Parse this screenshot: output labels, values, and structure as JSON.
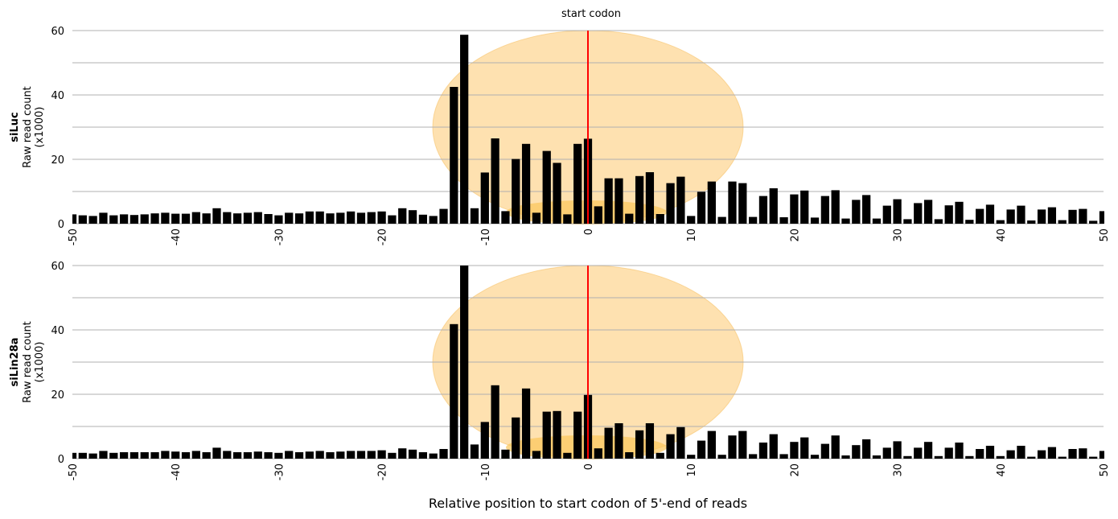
{
  "chart_data": [
    {
      "type": "bar",
      "ylabel_bold": "siLuc",
      "ylabel_lines": [
        "Raw read count",
        "(x1000)"
      ],
      "annotation": "start codon",
      "ylim": [
        0,
        60
      ],
      "yticks": [
        0,
        20,
        40,
        60
      ],
      "grid": true,
      "xlim": [
        -50,
        50
      ],
      "xticks": [
        -50,
        -40,
        -30,
        -20,
        -10,
        0,
        10,
        20,
        30,
        40,
        50
      ],
      "marker_line_x": 0,
      "marker_color": "#ff0000",
      "bar_color": "#000000",
      "x_start": -50,
      "values": [
        2.9,
        2.6,
        2.4,
        3.4,
        2.6,
        2.9,
        2.7,
        2.9,
        3.2,
        3.4,
        3.1,
        3.1,
        3.6,
        3.2,
        4.8,
        3.6,
        3.2,
        3.4,
        3.6,
        3.0,
        2.6,
        3.4,
        3.2,
        3.8,
        3.8,
        3.2,
        3.4,
        3.8,
        3.4,
        3.6,
        3.8,
        2.6,
        4.8,
        4.2,
        2.8,
        2.4,
        4.6,
        42.5,
        58.7,
        4.8,
        15.9,
        26.5,
        3.9,
        20.1,
        24.8,
        3.4,
        22.6,
        18.9,
        2.9,
        24.8,
        26.4,
        5.4,
        14.1,
        14.1,
        3.1,
        14.8,
        16.0,
        3.0,
        12.6,
        14.6,
        2.4,
        9.9,
        13.1,
        2.1,
        13.1,
        12.6,
        2.1,
        8.6,
        11.0,
        2.0,
        9.1,
        10.3,
        1.9,
        8.6,
        10.4,
        1.6,
        7.4,
        8.9,
        1.6,
        5.6,
        7.6,
        1.4,
        6.4,
        7.4,
        1.4,
        5.7,
        6.8,
        1.2,
        4.6,
        5.9,
        1.1,
        4.4,
        5.6,
        1.0,
        4.4,
        5.1,
        1.1,
        4.3,
        4.6,
        0.9,
        3.9
      ]
    },
    {
      "type": "bar",
      "ylabel_bold": "siLin28a",
      "ylabel_lines": [
        "Raw read count",
        "(x1000)"
      ],
      "ylim": [
        0,
        60
      ],
      "yticks": [
        0,
        20,
        40,
        60
      ],
      "grid": true,
      "xlim": [
        -50,
        50
      ],
      "xticks": [
        -50,
        -40,
        -30,
        -20,
        -10,
        0,
        10,
        20,
        30,
        40,
        50
      ],
      "xlabel": "Relative position to start codon of 5'-end of reads",
      "marker_line_x": 0,
      "marker_color": "#ff0000",
      "bar_color": "#000000",
      "x_start": -50,
      "values": [
        1.8,
        1.8,
        1.6,
        2.4,
        1.8,
        2.0,
        2.0,
        2.0,
        2.0,
        2.4,
        2.2,
        2.0,
        2.4,
        2.0,
        3.4,
        2.4,
        2.0,
        2.0,
        2.2,
        2.0,
        1.8,
        2.4,
        2.0,
        2.2,
        2.4,
        2.0,
        2.2,
        2.4,
        2.4,
        2.4,
        2.6,
        1.8,
        3.2,
        2.8,
        2.0,
        1.6,
        3.0,
        41.8,
        60.0,
        4.4,
        11.4,
        22.8,
        2.8,
        12.8,
        21.8,
        2.4,
        14.6,
        14.8,
        1.8,
        14.6,
        19.8,
        3.2,
        9.6,
        11.0,
        2.0,
        8.8,
        11.0,
        1.8,
        7.6,
        9.8,
        1.2,
        5.6,
        8.6,
        1.2,
        7.2,
        8.6,
        1.4,
        5.0,
        7.6,
        1.4,
        5.2,
        6.6,
        1.2,
        4.6,
        7.2,
        1.0,
        4.2,
        6.0,
        1.0,
        3.4,
        5.4,
        0.8,
        3.4,
        5.2,
        0.8,
        3.4,
        5.0,
        0.8,
        3.0,
        4.0,
        0.8,
        2.6,
        4.0,
        0.6,
        2.6,
        3.6,
        0.6,
        3.0,
        3.2,
        0.6,
        2.4
      ]
    }
  ]
}
